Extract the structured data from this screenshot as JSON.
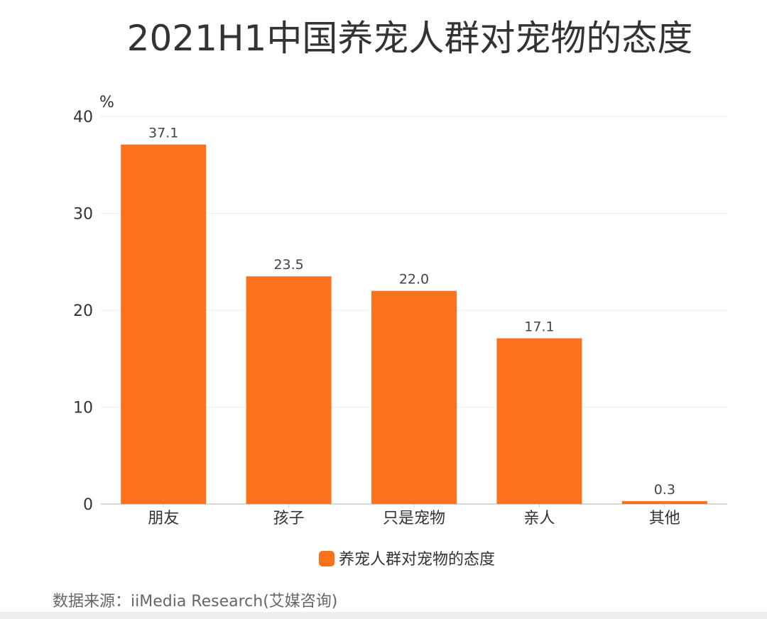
{
  "chart_data": {
    "type": "bar",
    "title": "2021H1中国养宠人群对宠物的态度",
    "ylabel": "%",
    "xlabel": "",
    "ylim": [
      0,
      40
    ],
    "yticks": [
      0,
      10,
      20,
      30,
      40
    ],
    "categories": [
      "朋友",
      "孩子",
      "只是宠物",
      "亲人",
      "其他"
    ],
    "series": [
      {
        "name": "养宠人群对宠物的态度",
        "values": [
          37.1,
          23.5,
          22.0,
          17.1,
          0.3
        ],
        "labels": [
          "37.1",
          "23.5",
          "22.0",
          "17.1",
          "0.3"
        ],
        "color": "#fc711c"
      }
    ],
    "grid": true,
    "legend_position": "bottom"
  },
  "source": "数据来源：iiMedia Research(艾媒咨询)",
  "colors": {
    "bar": "#fc711c",
    "grid": "#eeeeee",
    "axis": "#cccccc",
    "text": "#333333"
  }
}
